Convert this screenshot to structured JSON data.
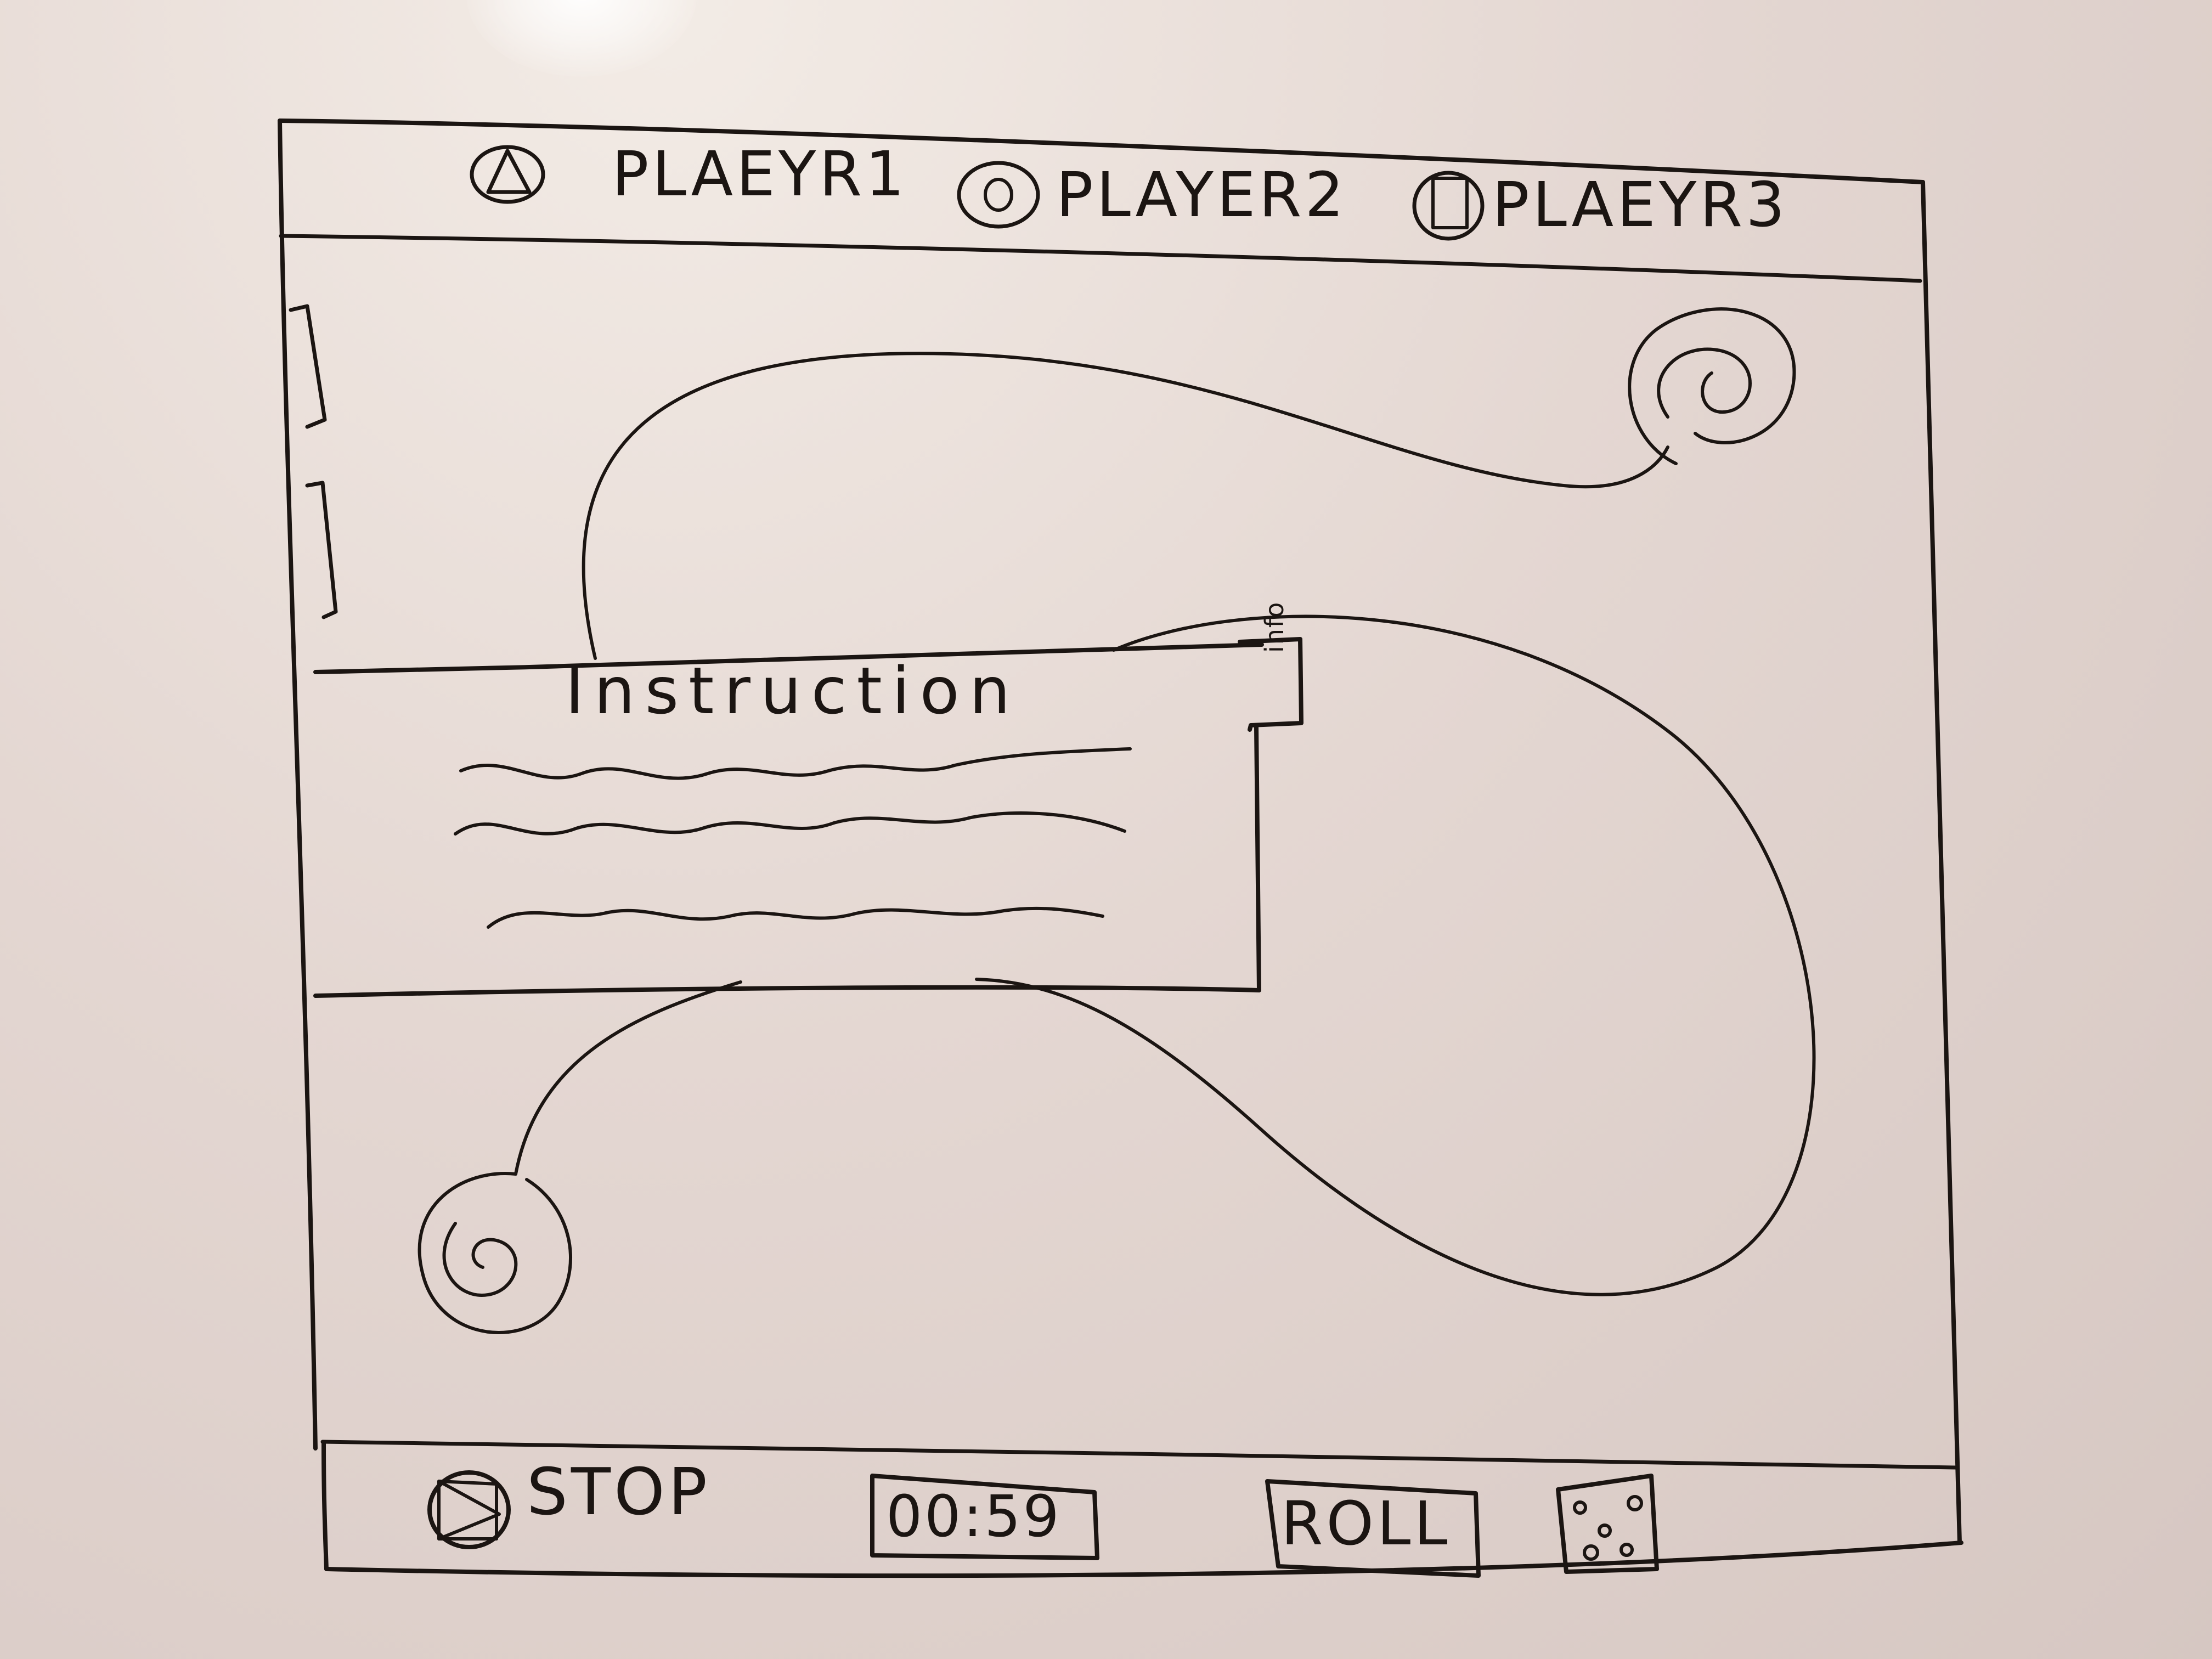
{
  "top_bar": {
    "players": [
      {
        "icon": "triangle-icon",
        "name": "PLAEYR1"
      },
      {
        "icon": "circle-icon",
        "name": "PLAYER2"
      },
      {
        "icon": "square-icon",
        "name": "PLAEYR3"
      }
    ]
  },
  "instruction_panel": {
    "title": "Instruction",
    "tab_label": "info"
  },
  "bottom_bar": {
    "stop_label": "STOP",
    "timer": "00:59",
    "roll_label": "ROLL"
  }
}
